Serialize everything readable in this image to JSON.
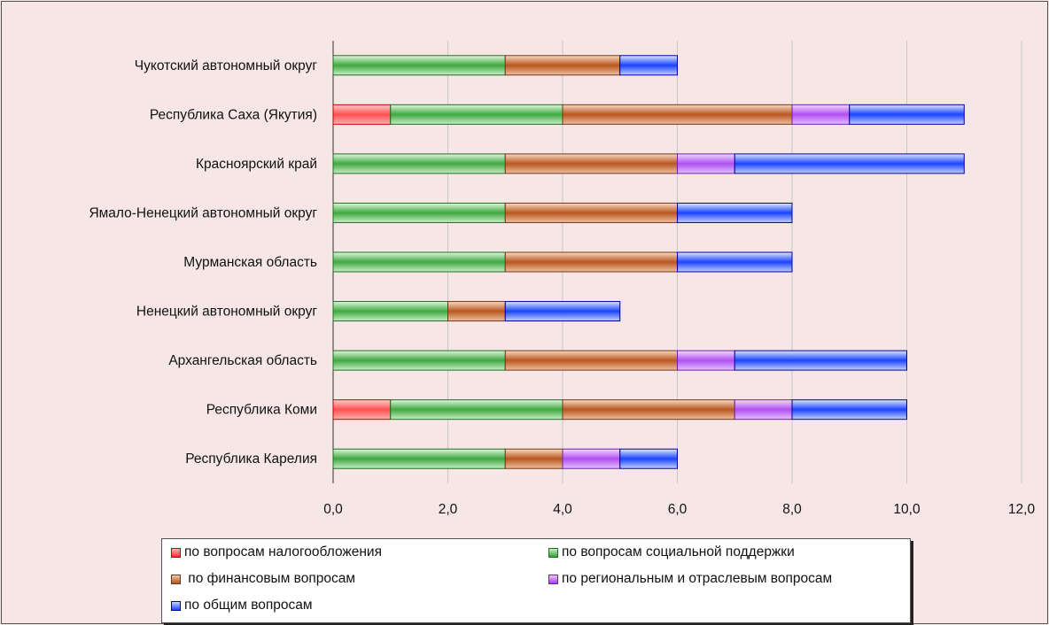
{
  "chart_data": {
    "type": "bar",
    "orientation": "horizontal",
    "stacked": true,
    "categories": [
      "Чукотский автономный округ",
      "Республика Саха (Якутия)",
      "Красноярский край",
      "Ямало-Ненецкий автономный округ",
      "Мурманская область",
      "Ненецкий автономный округ",
      "Архангельская область",
      "Республика Коми",
      "Республика Карелия"
    ],
    "series": [
      {
        "name": "по вопросам налогообложения",
        "color": "#ff5050",
        "values": [
          0,
          1,
          0,
          0,
          0,
          0,
          0,
          1,
          0
        ]
      },
      {
        "name": "по вопросам социальной поддержки",
        "color": "#3fa83f",
        "values": [
          3,
          3,
          3,
          3,
          3,
          2,
          3,
          3,
          3
        ]
      },
      {
        "name": " по финансовым вопросам",
        "color": "#c0632a",
        "values": [
          2,
          4,
          3,
          3,
          3,
          1,
          3,
          3,
          1
        ]
      },
      {
        "name": "по региональным и отраслевым вопросам",
        "color": "#b04ff0",
        "values": [
          0,
          1,
          1,
          0,
          0,
          0,
          1,
          1,
          1
        ]
      },
      {
        "name": "по общим вопросам",
        "color": "#1a44ff",
        "values": [
          1,
          2,
          4,
          2,
          2,
          2,
          3,
          2,
          1
        ]
      }
    ],
    "xlim": [
      0,
      12
    ],
    "xticks": [
      "0,0",
      "2,0",
      "4,0",
      "6,0",
      "8,0",
      "10,0",
      "12,0"
    ],
    "grid": true,
    "legend_position": "bottom"
  }
}
